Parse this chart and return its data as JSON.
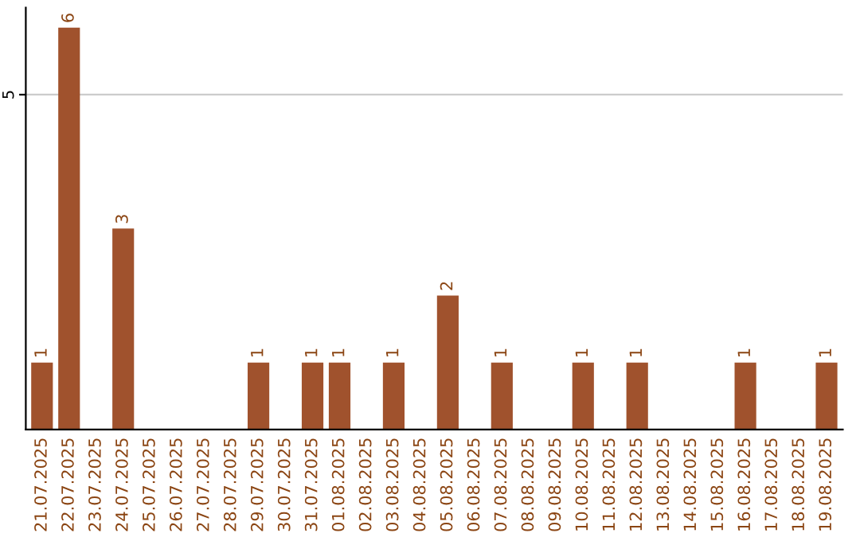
{
  "chart_data": {
    "type": "bar",
    "categories": [
      "21.07.2025",
      "22.07.2025",
      "23.07.2025",
      "24.07.2025",
      "25.07.2025",
      "26.07.2025",
      "27.07.2025",
      "28.07.2025",
      "29.07.2025",
      "30.07.2025",
      "31.07.2025",
      "01.08.2025",
      "02.08.2025",
      "03.08.2025",
      "04.08.2025",
      "05.08.2025",
      "06.08.2025",
      "07.08.2025",
      "08.08.2025",
      "09.08.2025",
      "10.08.2025",
      "11.08.2025",
      "12.08.2025",
      "13.08.2025",
      "14.08.2025",
      "15.08.2025",
      "16.08.2025",
      "17.08.2025",
      "18.08.2025",
      "19.08.2025"
    ],
    "values": [
      1,
      6,
      0,
      3,
      0,
      0,
      0,
      0,
      1,
      0,
      1,
      1,
      0,
      1,
      0,
      2,
      0,
      1,
      0,
      0,
      1,
      0,
      1,
      0,
      0,
      0,
      1,
      0,
      0,
      1
    ],
    "value_labels": [
      "1",
      "6",
      null,
      "3",
      null,
      null,
      null,
      null,
      "1",
      null,
      "1",
      "1",
      null,
      "1",
      null,
      "2",
      null,
      "1",
      null,
      null,
      "1",
      null,
      "1",
      null,
      null,
      null,
      "1",
      null,
      null,
      "1"
    ],
    "color": "#a0522d",
    "ylim": [
      0,
      6.3
    ],
    "yticks": [
      5
    ],
    "grid": "y"
  }
}
